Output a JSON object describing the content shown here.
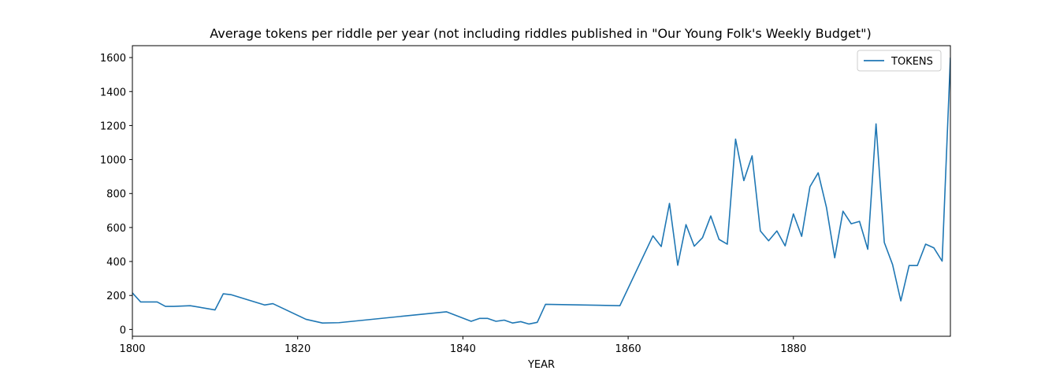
{
  "chart_data": {
    "type": "line",
    "title": "Average tokens per riddle per year (not including riddles published in \"Our Young Folk's Weekly Budget\")",
    "xlabel": "YEAR",
    "ylabel": "",
    "xlim": [
      1800,
      1899
    ],
    "ylim": [
      -40,
      1670
    ],
    "xticks": [
      "1800",
      "1820",
      "1840",
      "1860",
      "1880"
    ],
    "xtick_values": [
      1800,
      1820,
      1840,
      1860,
      1880
    ],
    "yticks": [
      "0",
      "200",
      "400",
      "600",
      "800",
      "1000",
      "1200",
      "1400",
      "1600"
    ],
    "ytick_values": [
      0,
      200,
      400,
      600,
      800,
      1000,
      1200,
      1400,
      1600
    ],
    "grid": false,
    "legend": {
      "position": "top-right",
      "entries": [
        "TOKENS"
      ]
    },
    "series": [
      {
        "name": "TOKENS",
        "color": "#1f77b4",
        "x": [
          1800,
          1801,
          1803,
          1804,
          1805,
          1807,
          1810,
          1811,
          1812,
          1816,
          1817,
          1821,
          1823,
          1825,
          1838,
          1841,
          1842,
          1843,
          1844,
          1845,
          1846,
          1847,
          1848,
          1849,
          1850,
          1859,
          1863,
          1864,
          1865,
          1866,
          1867,
          1868,
          1869,
          1870,
          1871,
          1872,
          1873,
          1874,
          1875,
          1876,
          1877,
          1878,
          1879,
          1880,
          1881,
          1882,
          1883,
          1884,
          1885,
          1886,
          1887,
          1888,
          1889,
          1890,
          1891,
          1892,
          1893,
          1894,
          1895,
          1896,
          1897,
          1898,
          1899
        ],
        "values": [
          215,
          162,
          162,
          136,
          136,
          140,
          115,
          210,
          204,
          144,
          152,
          60,
          38,
          40,
          104,
          48,
          65,
          65,
          48,
          55,
          38,
          46,
          32,
          42,
          148,
          140,
          551,
          488,
          742,
          378,
          617,
          490,
          540,
          668,
          530,
          502,
          1120,
          876,
          1022,
          580,
          522,
          580,
          492,
          680,
          548,
          840,
          922,
          718,
          422,
          696,
          622,
          636,
          472,
          1210,
          512,
          382,
          168,
          376,
          376,
          502,
          480,
          402,
          1600
        ]
      }
    ]
  }
}
